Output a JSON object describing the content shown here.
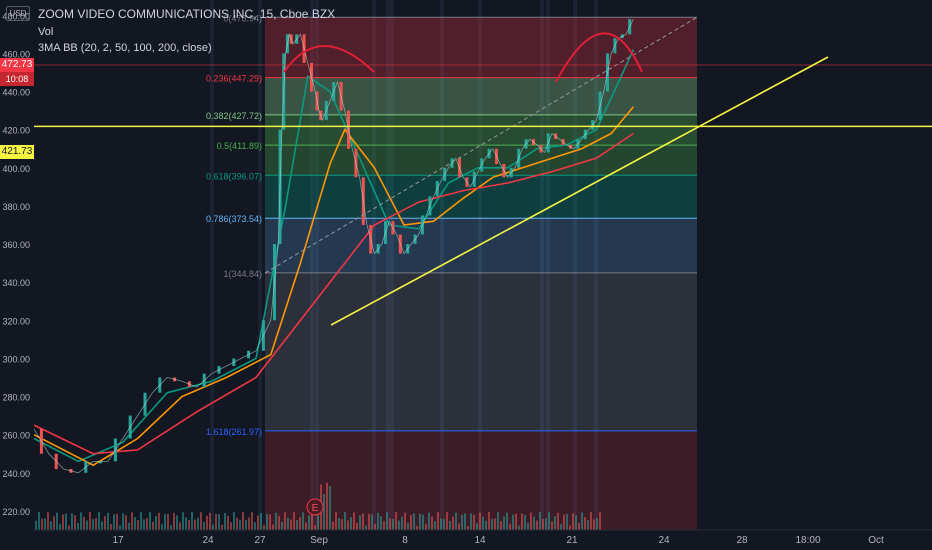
{
  "header": {
    "title": "ZOOM VIDEO COMMUNICATIONS INC, 15, Cboe BZX",
    "vol_label": "Vol",
    "indicator": "3MA BB (20, 2, 50, 100, 200, close)"
  },
  "currency_button": "USD",
  "price_badges": {
    "last_price": "472.73",
    "countdown": "10:08",
    "hline_price": "421.73",
    "colors": {
      "last": "#f23645",
      "hline": "#f5f542"
    }
  },
  "chart_data": {
    "type": "line",
    "y_axis": {
      "ticks": [
        "480.00",
        "460.00",
        "440.00",
        "420.00",
        "400.00",
        "380.00",
        "360.00",
        "340.00",
        "320.00",
        "300.00",
        "280.00",
        "260.00",
        "240.00",
        "220.00"
      ],
      "range": [
        210,
        488
      ]
    },
    "x_axis": {
      "ticks": [
        "17",
        "24",
        "27",
        "Sep",
        "8",
        "14",
        "21",
        "24",
        "28",
        "18:00",
        "Oct"
      ]
    },
    "fibonacci": [
      {
        "label": "0(478.94)",
        "value": 478.94,
        "color": "#787b86"
      },
      {
        "label": "0.236(447.29)",
        "value": 447.29,
        "color": "#f23645"
      },
      {
        "label": "0.382(427.72)",
        "value": 427.72,
        "color": "#81c784"
      },
      {
        "label": "0.5(411.89)",
        "value": 411.89,
        "color": "#4caf50"
      },
      {
        "label": "0.618(396.07)",
        "value": 396.07,
        "color": "#089981"
      },
      {
        "label": "0.786(373.54)",
        "value": 373.54,
        "color": "#64b5f6"
      },
      {
        "label": "1(344.84)",
        "value": 344.84,
        "color": "#787b86"
      },
      {
        "label": "1.618(261.97)",
        "value": 261.97,
        "color": "#2962ff"
      }
    ],
    "horizontal_line": 421.73,
    "trendline": [
      {
        "x": 0.14,
        "y": 320
      },
      {
        "x": 0.86,
        "y": 478
      }
    ],
    "price_path": [
      [
        0.0,
        263
      ],
      [
        0.02,
        250
      ],
      [
        0.04,
        242
      ],
      [
        0.06,
        240
      ],
      [
        0.08,
        246
      ],
      [
        0.1,
        246
      ],
      [
        0.12,
        258
      ],
      [
        0.14,
        270
      ],
      [
        0.16,
        282
      ],
      [
        0.18,
        290
      ],
      [
        0.2,
        288
      ],
      [
        0.22,
        285
      ],
      [
        0.24,
        292
      ],
      [
        0.26,
        296
      ],
      [
        0.28,
        300
      ],
      [
        0.3,
        304
      ],
      [
        0.32,
        320
      ],
      [
        0.33,
        360
      ],
      [
        0.335,
        420
      ],
      [
        0.34,
        460
      ],
      [
        0.345,
        470
      ],
      [
        0.35,
        465
      ],
      [
        0.36,
        470
      ],
      [
        0.37,
        455
      ],
      [
        0.38,
        440
      ],
      [
        0.385,
        430
      ],
      [
        0.39,
        425
      ],
      [
        0.4,
        435
      ],
      [
        0.41,
        445
      ],
      [
        0.42,
        430
      ],
      [
        0.43,
        410
      ],
      [
        0.44,
        395
      ],
      [
        0.45,
        370
      ],
      [
        0.46,
        355
      ],
      [
        0.47,
        360
      ],
      [
        0.48,
        372
      ],
      [
        0.49,
        365
      ],
      [
        0.5,
        355
      ],
      [
        0.51,
        360
      ],
      [
        0.52,
        365
      ],
      [
        0.53,
        375
      ],
      [
        0.54,
        385
      ],
      [
        0.55,
        393
      ],
      [
        0.56,
        400
      ],
      [
        0.57,
        405
      ],
      [
        0.58,
        395
      ],
      [
        0.59,
        390
      ],
      [
        0.6,
        398
      ],
      [
        0.61,
        405
      ],
      [
        0.62,
        410
      ],
      [
        0.63,
        402
      ],
      [
        0.64,
        395
      ],
      [
        0.65,
        400
      ],
      [
        0.66,
        410
      ],
      [
        0.67,
        415
      ],
      [
        0.68,
        412
      ],
      [
        0.69,
        408
      ],
      [
        0.7,
        418
      ],
      [
        0.71,
        415
      ],
      [
        0.72,
        412
      ],
      [
        0.73,
        410
      ],
      [
        0.74,
        415
      ],
      [
        0.75,
        420
      ],
      [
        0.76,
        425
      ],
      [
        0.77,
        440
      ],
      [
        0.78,
        460
      ],
      [
        0.79,
        468
      ],
      [
        0.8,
        470
      ],
      [
        0.81,
        478
      ]
    ],
    "ma_series": [
      {
        "color": "#089981",
        "values": [
          [
            0.0,
            258
          ],
          [
            0.06,
            246
          ],
          [
            0.12,
            256
          ],
          [
            0.18,
            282
          ],
          [
            0.24,
            288
          ],
          [
            0.3,
            300
          ],
          [
            0.34,
            380
          ],
          [
            0.37,
            448
          ],
          [
            0.4,
            440
          ],
          [
            0.44,
            405
          ],
          [
            0.48,
            370
          ],
          [
            0.52,
            368
          ],
          [
            0.56,
            392
          ],
          [
            0.6,
            400
          ],
          [
            0.64,
            400
          ],
          [
            0.68,
            410
          ],
          [
            0.72,
            412
          ],
          [
            0.76,
            420
          ],
          [
            0.79,
            445
          ],
          [
            0.81,
            462
          ]
        ]
      },
      {
        "color": "#ff9800",
        "values": [
          [
            0.0,
            260
          ],
          [
            0.08,
            244
          ],
          [
            0.14,
            258
          ],
          [
            0.2,
            280
          ],
          [
            0.26,
            290
          ],
          [
            0.32,
            302
          ],
          [
            0.36,
            350
          ],
          [
            0.4,
            402
          ],
          [
            0.42,
            420
          ],
          [
            0.46,
            400
          ],
          [
            0.5,
            370
          ],
          [
            0.54,
            372
          ],
          [
            0.58,
            384
          ],
          [
            0.62,
            395
          ],
          [
            0.66,
            400
          ],
          [
            0.7,
            405
          ],
          [
            0.74,
            410
          ],
          [
            0.78,
            418
          ],
          [
            0.81,
            432
          ]
        ]
      },
      {
        "color": "#f23645",
        "values": [
          [
            0.0,
            265
          ],
          [
            0.08,
            250
          ],
          [
            0.14,
            252
          ],
          [
            0.22,
            272
          ],
          [
            0.3,
            290
          ],
          [
            0.34,
            310
          ],
          [
            0.4,
            340
          ],
          [
            0.46,
            370
          ],
          [
            0.52,
            382
          ],
          [
            0.58,
            388
          ],
          [
            0.64,
            392
          ],
          [
            0.7,
            398
          ],
          [
            0.76,
            405
          ],
          [
            0.81,
            418
          ]
        ]
      }
    ],
    "annotations": [
      "E"
    ]
  }
}
